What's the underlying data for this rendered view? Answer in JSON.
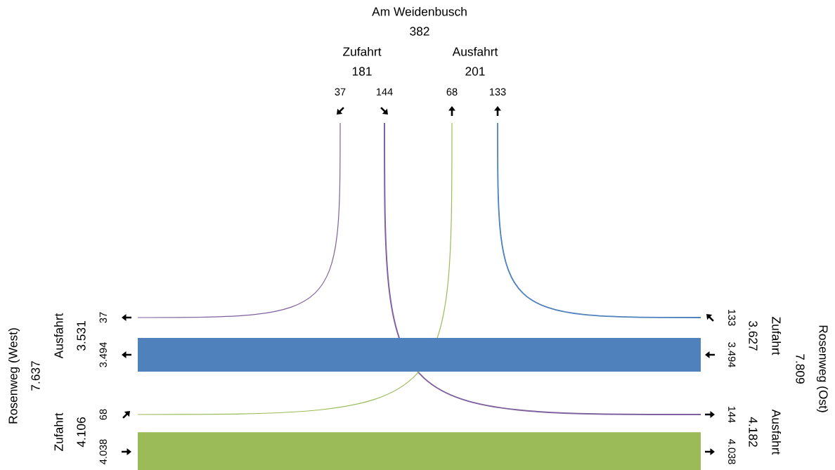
{
  "chart_data": {
    "type": "other",
    "categories": [
      "Am Weidenbusch",
      "Rosenweg (West)",
      "Rosenweg (Ost)"
    ],
    "values": [
      382,
      7637,
      7809
    ],
    "value_labels": [
      "382",
      "7.637",
      "7.809"
    ],
    "series": [
      {
        "name": "Zufahrt",
        "values": [
          181,
          4106,
          3627
        ],
        "value_labels": [
          "181",
          "4.106",
          "3.627"
        ]
      },
      {
        "name": "Ausfahrt",
        "values": [
          201,
          3531,
          4182
        ],
        "value_labels": [
          "201",
          "3.531",
          "4.182"
        ]
      },
      {
        "type": "line",
        "x": [
          "Zufahrt",
          "Ausfahrt",
          null
        ],
        "color": "#7f60a0",
        "values": [
          37,
          37,
          null
        ],
        "value_labels": [
          "37",
          "37",
          null
        ]
      },
      {
        "type": "line",
        "x": [
          "Zufahrt",
          null,
          "Ausfahrt"
        ],
        "color": "#7f60a0",
        "values": [
          144,
          null,
          144
        ],
        "value_labels": [
          "144",
          null,
          "144"
        ]
      },
      {
        "type": "line",
        "x": [
          "Ausfahrt",
          "Zufahrt",
          null
        ],
        "color": "#9bbb59",
        "values": [
          68,
          68,
          null
        ],
        "value_labels": [
          "68",
          "68",
          null
        ]
      },
      {
        "type": "line",
        "x": [
          "Ausfahrt",
          null,
          "Zufahrt"
        ],
        "color": "#4f81bd",
        "values": [
          133,
          null,
          133
        ],
        "value_labels": [
          "133",
          null,
          "133"
        ]
      },
      {
        "type": "line",
        "x": [
          null,
          "Ausfahrt",
          "Zufahrt"
        ],
        "color": "#4f81bd",
        "values": [
          null,
          3494,
          3494
        ],
        "value_labels": [
          null,
          "3.494",
          "3.494"
        ]
      },
      {
        "type": "line",
        "x": [
          null,
          "Zufahrt",
          "Ausfahrt"
        ],
        "color": "#9bbb59",
        "values": [
          null,
          4038,
          4038
        ],
        "value_labels": [
          null,
          "4.038",
          "4.038"
        ]
      }
    ]
  }
}
